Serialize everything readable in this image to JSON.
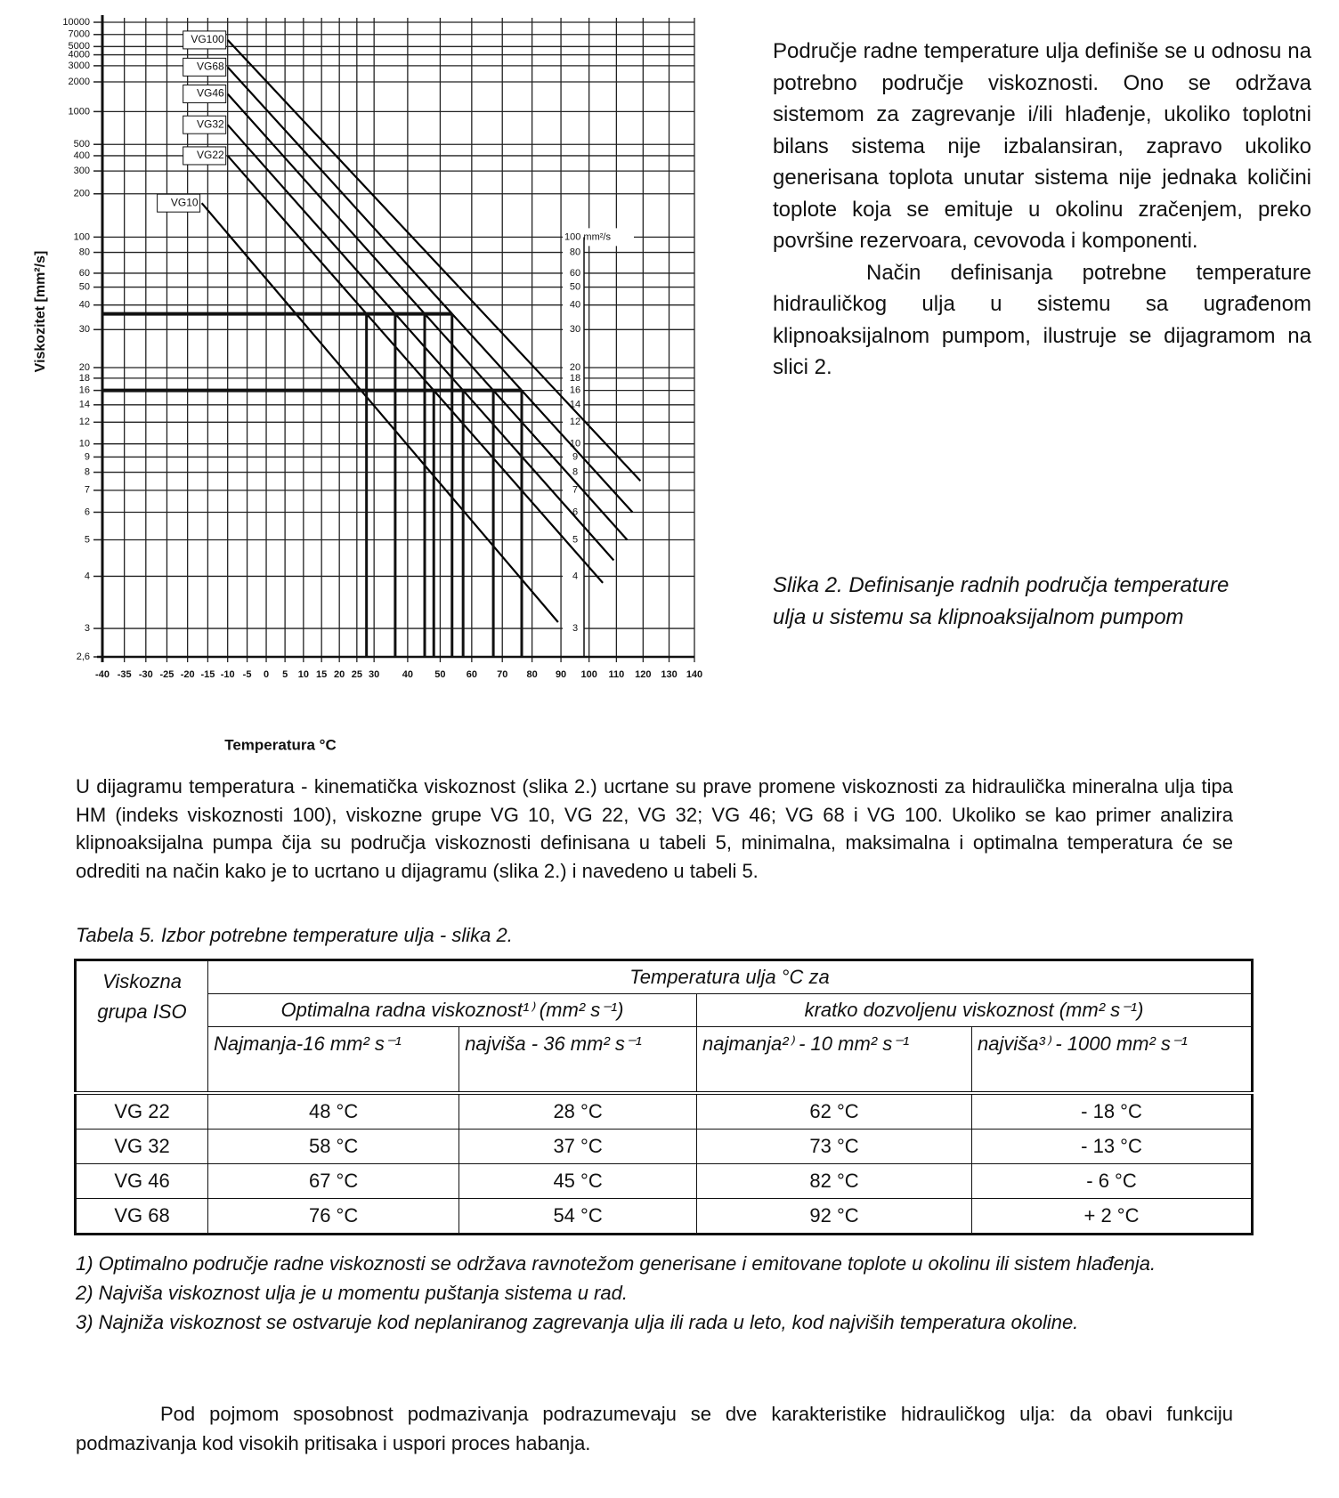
{
  "chart_data": {
    "type": "line",
    "x_label": "Temperatura °C",
    "y_label": "Viskozitet [mm²/s]",
    "xlim": [
      -40,
      140
    ],
    "ylim": [
      2.6,
      10000
    ],
    "xticks": [
      -40,
      -35,
      -30,
      -25,
      -20,
      -15,
      -10,
      -5,
      0,
      5,
      10,
      15,
      20,
      25,
      30,
      40,
      50,
      60,
      70,
      80,
      90,
      100,
      110,
      120,
      130,
      140
    ],
    "yticks": [
      10000,
      7000,
      5000,
      4000,
      3000,
      2000,
      1000,
      500,
      400,
      300,
      200,
      100,
      80,
      60,
      50,
      40,
      30,
      20,
      18,
      16,
      14,
      12,
      10,
      9,
      8,
      7,
      6,
      5,
      4,
      3,
      {
        "value": 2.6,
        "label": "2,6"
      }
    ],
    "inner_ticks": [
      {
        "value": 100,
        "label": "100 mm²/s"
      },
      80,
      60,
      50,
      40,
      30,
      20,
      18,
      16,
      14,
      12,
      10,
      9,
      8,
      7,
      6,
      5,
      4,
      3
    ],
    "grid": true,
    "series": [
      {
        "name": "VG100",
        "color": "#000000",
        "x": [
          -10,
          119
        ],
        "values": [
          6000,
          7.5
        ]
      },
      {
        "name": "VG68",
        "color": "#000000",
        "x": [
          -10,
          116
        ],
        "values": [
          2900,
          6
        ]
      },
      {
        "name": "VG46",
        "color": "#000000",
        "x": [
          -10,
          114
        ],
        "values": [
          1500,
          5
        ]
      },
      {
        "name": "VG32",
        "color": "#000000",
        "x": [
          -10,
          109
        ],
        "values": [
          750,
          4.4
        ]
      },
      {
        "name": "VG22",
        "color": "#000000",
        "x": [
          -10,
          105
        ],
        "values": [
          400,
          3.85
        ]
      },
      {
        "name": "VG10",
        "color": "#000000",
        "x": [
          -16.5,
          89
        ],
        "values": [
          171,
          3.1
        ]
      }
    ],
    "reference_viscosities": [
      36,
      16
    ]
  },
  "intro": {
    "paragraphs": [
      "Područje radne temperature ulja definiše se u odnosu na potrebno područje viskoznosti. Ono se održava sistemom za zagrevanje i/ili hlađenje, ukoliko toplotni bilans sistema nije izbalansiran, zapravo ukoliko generisana toplota unutar sistema nije jednaka količini toplote koja se emituje u okolinu zračenjem, preko površine rezervoara, cevovoda i komponenti.",
      "Način definisanja potrebne temperature hidrauličkog ulja u sistemu sa ugrađenom klipnoaksijalnom pumpom, ilustruje se dijagramom na slici 2."
    ]
  },
  "figure_caption": "Slika 2. Definisanje radnih područja temperature ulja u sistemu sa klipnoaksijalnom pumpom",
  "body": "U dijagramu temperatura - kinematička viskoznost (slika 2.) ucrtane su prave promene viskoznosti za hidraulička mineralna ulja tipa HM (indeks viskoznosti 100), viskozne grupe VG 10, VG 22, VG 32; VG 46; VG 68 i VG 100. Ukoliko se kao primer analizira klipnoaksijalna pumpa čija su područja viskoznosti definisana u tabeli 5, minimalna, maksimalna i optimalna temperatura će se odrediti na način kako je to ucrtano u dijagramu (slika 2.) i navedeno u tabeli 5.",
  "table_caption": "Tabela 5. Izbor potrebne temperature ulja - slika 2.",
  "table": {
    "header": {
      "group": "Viskozna grupa ISO",
      "span": "Temperatura ulja °C za",
      "optimal": "Optimalna  radna viskoznost¹⁾ (mm² s⁻¹)",
      "short": "kratko dozvoljenu viskoznost (mm² s⁻¹)",
      "columns": [
        "Najmanja-16 mm² s⁻¹",
        "najviša - 36 mm² s⁻¹",
        "najmanja²⁾ - 10 mm² s⁻¹",
        "najviša³⁾ - 1000 mm² s⁻¹"
      ]
    },
    "rows": [
      [
        "VG 22",
        "48 °C",
        "28 °C",
        "62 °C",
        "- 18 °C"
      ],
      [
        "VG 32",
        "58 °C",
        "37 °C",
        "73 °C",
        "- 13 °C"
      ],
      [
        "VG 46",
        "67 °C",
        "45 °C",
        "82 °C",
        "- 6 °C"
      ],
      [
        "VG 68",
        "76 °C",
        "54 °C",
        "92 °C",
        "+ 2 °C"
      ]
    ]
  },
  "footnotes": [
    "1) Optimalno područje radne viskoznosti se održava ravnotežom generisane i emitovane toplote u okolinu ili sistem hlađenja.",
    "2) Najviša viskoznost ulja je u momentu puštanja sistema u rad.",
    "3) Najniža viskoznost se ostvaruje kod neplaniranog zagrevanja ulja ili rada u leto, kod najviših temperatura okoline."
  ],
  "closing": "Pod pojmom sposobnost podmazivanja podrazumevaju se dve karakteristike hidrauličkog ulja: da obavi funkciju podmazivanja kod visokih pritisaka i uspori proces habanja."
}
